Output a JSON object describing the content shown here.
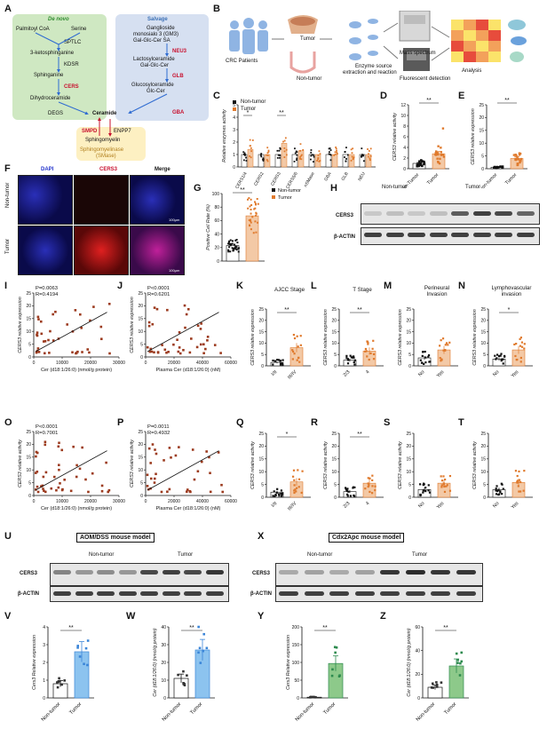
{
  "panels": [
    "A",
    "B",
    "C",
    "D",
    "E",
    "F",
    "G",
    "H",
    "I",
    "J",
    "K",
    "L",
    "M",
    "N",
    "O",
    "P",
    "Q",
    "R",
    "S",
    "T",
    "U",
    "V",
    "W",
    "X",
    "Y",
    "Z"
  ],
  "panelA": {
    "denovo_title": "De novo",
    "salvage_title": "Salvage",
    "denovo": [
      "Palmitoyl CoA",
      "Serine",
      "SPTLC",
      "3-ketosphinganine",
      "KDSR",
      "Sphinganine",
      "CERS",
      "Dihydroceramide",
      "DEGS"
    ],
    "salvage": [
      "Ganglioside",
      "monosialo 3 (GM3)",
      "Gal-Glc-Cer SA",
      "NEU3",
      "Lactosylceramide",
      "Gal-Glc-Cer",
      "GLB",
      "Glucosylceramide",
      "Glc-Cer",
      "GBA"
    ],
    "center": "Ceramide",
    "smase": [
      "SMPD",
      "ENPP7",
      "Sphingomyelin",
      "Sphingomyelinase",
      "(SMase)"
    ]
  },
  "panelB": {
    "labels": [
      "CRC Patients",
      "Tumor",
      "Non-tumor",
      "Enzyme source",
      "extraction and reaction",
      "Mass spectrum",
      "Fluorescent detection",
      "Analysis"
    ]
  },
  "panelC": {
    "ylabel": "Relative enzymes activity",
    "legend": [
      "Non-tumor",
      "Tumor"
    ],
    "categories": [
      "CERS1/4",
      "CERS2",
      "CERS3",
      "CERS5/6",
      "nSMase",
      "GBA",
      "GLB",
      "NEU"
    ],
    "sig": [
      "*",
      "",
      "**",
      "",
      "",
      "",
      "",
      ""
    ]
  },
  "panelD": {
    "ylabel": "CERS3 relative activity",
    "cats": [
      "Non-Tumor",
      "Tumor"
    ],
    "sig": "**"
  },
  "panelE": {
    "ylabel": "CERS3 relative expression",
    "cats": [
      "Non-tumor",
      "Tumor"
    ],
    "sig": "**"
  },
  "panelF": {
    "cols": [
      "DAPI",
      "CERS3",
      "Merge"
    ],
    "rows": [
      "Non-tumor",
      "Tumor"
    ],
    "scale": "100μm"
  },
  "panelG": {
    "ylabel": "Positive Cell Rate (%)",
    "legend": [
      "Non-tumor",
      "Tumor"
    ],
    "sig": "**"
  },
  "panelH": {
    "groups": [
      "Non-tumor",
      "Tumor"
    ],
    "rows": [
      "CERS3",
      "β-ACTIN"
    ]
  },
  "panelI": {
    "stat1": "P=0.0063",
    "stat2": "R=0.4194",
    "xlabel": "Cer (d18:1/26:0) (nmol/g protein)",
    "ylabel": "CERS3 relative expression",
    "xticks": [
      "0",
      "10000",
      "20000",
      "30000"
    ]
  },
  "panelJ": {
    "stat1": "P<0.0001",
    "stat2": "R=0.6201",
    "xlabel": "Plasma Cer (d18:1/26:0) (nM)",
    "ylabel": "CERS3 relative expression",
    "xticks": [
      "0",
      "20000",
      "40000",
      "60000"
    ]
  },
  "panelO": {
    "stat1": "P<0.0001",
    "stat2": "R=0.7001",
    "xlabel": "Cer (d18:1/26:0) (nmol/g protein)",
    "ylabel": "CERS3 relative activity",
    "xticks": [
      "0",
      "10000",
      "20000",
      "30000"
    ]
  },
  "panelP": {
    "stat1": "P=0.0011",
    "stat2": "R=0.4932",
    "xlabel": "Plasma Cer (d18:1/26:0) (nM)",
    "ylabel": "CERS3 relative activity",
    "xticks": [
      "0",
      "20000",
      "40000",
      "60000"
    ]
  },
  "panelK": {
    "title": "AJCC Stage",
    "cats": [
      "I/II",
      "III/IV"
    ],
    "sig": "**",
    "ylabel": "CERS3 relative expression"
  },
  "panelL": {
    "title": "T Stage",
    "cats": [
      "2/3",
      "4"
    ],
    "sig": "**",
    "ylabel": "CERS3 relative expression"
  },
  "panelM": {
    "title": "Perineural Invasion",
    "cats": [
      "No",
      "Yes"
    ],
    "sig": "",
    "ylabel": "CERS3 relative expression"
  },
  "panelN": {
    "title": "Lymphovascular invasion",
    "cats": [
      "No",
      "Yes"
    ],
    "sig": "*",
    "ylabel": "CERS3 relative expression"
  },
  "panelQ": {
    "cats": [
      "I/II",
      "III/IV"
    ],
    "sig": "*",
    "ylabel": "CERS3 relative activity"
  },
  "panelR": {
    "cats": [
      "2/3",
      "4"
    ],
    "sig": "**",
    "ylabel": "CERS3 relative activity"
  },
  "panelS": {
    "cats": [
      "No",
      "Yes"
    ],
    "sig": "",
    "ylabel": "CERS3 relative activity"
  },
  "panelT": {
    "cats": [
      "No",
      "Yes"
    ],
    "sig": "",
    "ylabel": "CERS3 relative activity"
  },
  "panelU": {
    "model": "AOM/DSS mouse model",
    "groups": [
      "Non-tumor",
      "Tumor"
    ],
    "rows": [
      "CERS3",
      "β-ACTIN"
    ]
  },
  "panelX": {
    "model": "Cdx2Apc mouse model",
    "groups": [
      "Non-tumor",
      "Tumor"
    ],
    "rows": [
      "CERS3",
      "β-ACTIN"
    ]
  },
  "panelV": {
    "ylabel": "Cers3 Relative expression",
    "cats": [
      "Non-tumor",
      "Tumor"
    ],
    "sig": "**",
    "yticks": [
      "0",
      "1",
      "2",
      "3",
      "4"
    ]
  },
  "panelW": {
    "ylabel": "Cer (d18:1/26:0) (nmol/g protein)",
    "cats": [
      "Non-tumor",
      "Tumor"
    ],
    "sig": "**",
    "yticks": [
      "0",
      "10",
      "20",
      "30",
      "40"
    ]
  },
  "panelY": {
    "ylabel": "Cers3 Relative expression",
    "cats": [
      "Non-tumor",
      "Tumor"
    ],
    "sig": "**",
    "yticks": [
      "0",
      "50",
      "100",
      "150",
      "200"
    ]
  },
  "panelZ": {
    "ylabel": "Cer (d18:1/26:0) (nmol/g protein)",
    "cats": [
      "Non-tumor",
      "Tumor"
    ],
    "sig": "**",
    "yticks": [
      "0",
      "20",
      "40",
      "60"
    ]
  },
  "chart_data": [
    {
      "type": "bar",
      "panel": "V",
      "categories": [
        "Non-tumor",
        "Tumor"
      ],
      "values": [
        0.8,
        2.6
      ],
      "ylim": [
        0,
        4
      ]
    },
    {
      "type": "bar",
      "panel": "W",
      "categories": [
        "Non-tumor",
        "Tumor"
      ],
      "values": [
        11,
        27
      ],
      "ylim": [
        0,
        40
      ]
    },
    {
      "type": "bar",
      "panel": "Y",
      "categories": [
        "Non-tumor",
        "Tumor"
      ],
      "values": [
        2,
        97
      ],
      "ylim": [
        0,
        200
      ]
    },
    {
      "type": "bar",
      "panel": "Z",
      "categories": [
        "Non-tumor",
        "Tumor"
      ],
      "values": [
        9,
        27
      ],
      "ylim": [
        0,
        60
      ]
    },
    {
      "type": "bar",
      "panel": "G",
      "categories": [
        "Non-tumor",
        "Tumor"
      ],
      "values": [
        23,
        67
      ],
      "ylim": [
        0,
        100
      ]
    }
  ],
  "colors": {
    "orange": "#e07a2d",
    "dark": "#222222",
    "green_fill": "#c9e6b9",
    "green_bar": "#8dc98a",
    "blue_bar": "#8cc3ef",
    "blue_fill": "#d2dff0",
    "yellow_fill": "#fdf0c2"
  }
}
